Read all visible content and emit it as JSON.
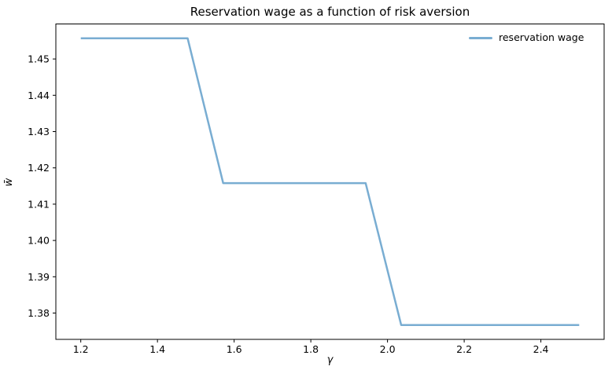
{
  "chart_data": {
    "type": "line",
    "title": "Reservation wage as a function of risk aversion",
    "xlabel": "γ",
    "ylabel": "w̄",
    "xlim": [
      1.135,
      2.565
    ],
    "ylim": [
      1.37275,
      1.45965
    ],
    "grid": false,
    "legend": {
      "position": "upper right",
      "frame": false
    },
    "xticks": {
      "values": [
        1.2,
        1.4,
        1.6,
        1.8,
        2.0,
        2.2,
        2.4
      ],
      "labels": [
        "1.2",
        "1.4",
        "1.6",
        "1.8",
        "2.0",
        "2.2",
        "2.4"
      ]
    },
    "yticks": {
      "values": [
        1.38,
        1.39,
        1.4,
        1.41,
        1.42,
        1.43,
        1.44,
        1.45
      ],
      "labels": [
        "1.38",
        "1.39",
        "1.40",
        "1.41",
        "1.42",
        "1.43",
        "1.44",
        "1.45"
      ]
    },
    "series": [
      {
        "name": "reservation wage",
        "color": "#79add2",
        "line_width": 2.5,
        "x": [
          1.2,
          1.2929,
          1.3857,
          1.4786,
          1.5714,
          1.6643,
          1.7571,
          1.85,
          1.9429,
          2.0357,
          2.1286,
          2.2214,
          2.3143,
          2.4071,
          2.5
        ],
        "y": [
          1.4557,
          1.4557,
          1.4557,
          1.4557,
          1.4158,
          1.4158,
          1.4158,
          1.4158,
          1.4158,
          1.3767,
          1.3767,
          1.3767,
          1.3767,
          1.3767,
          1.3767
        ]
      }
    ]
  }
}
